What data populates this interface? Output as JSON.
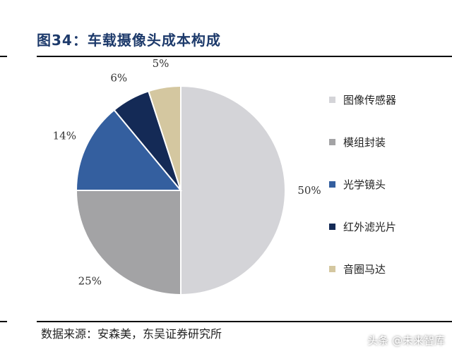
{
  "header": {
    "title": "图34：车载摄像头成本构成"
  },
  "footer": {
    "source": "数据来源：安森美，东吴证券研究所",
    "watermark": "头条 @未来智库"
  },
  "chart_data": {
    "type": "pie",
    "title": "图34：车载摄像头成本构成",
    "start": "12 o'clock, clockwise",
    "legend_position": "right",
    "slices": [
      {
        "label": "图像传感器",
        "value": 50,
        "display": "50%",
        "color": "#d4d4d8"
      },
      {
        "label": "模组封装",
        "value": 25,
        "display": "25%",
        "color": "#a3a3a5"
      },
      {
        "label": "光学镜头",
        "value": 14,
        "display": "14%",
        "color": "#345f9f"
      },
      {
        "label": "红外滤光片",
        "value": 6,
        "display": "6%",
        "color": "#142a56"
      },
      {
        "label": "音圈马达",
        "value": 5,
        "display": "5%",
        "color": "#d4c7a0"
      }
    ]
  }
}
